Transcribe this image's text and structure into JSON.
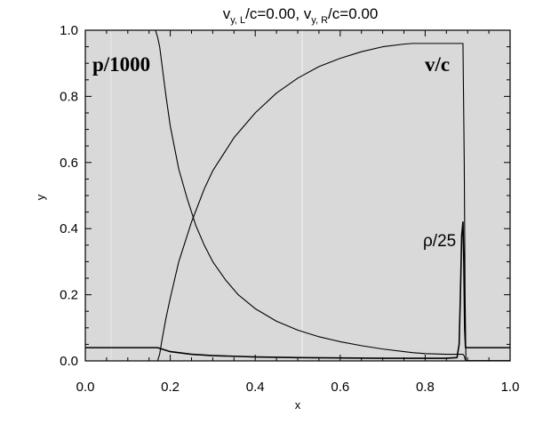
{
  "chart_data": {
    "type": "line",
    "title": "v_{y, L}/c=0.00,  v_{y, R}/c=0.00",
    "title_parts": {
      "v1": "v",
      "sub1": "y, L",
      "mid": "/c=0.00,  ",
      "v2": "v",
      "sub2": "y, R",
      "end": "/c=0.00"
    },
    "xlabel": "x",
    "ylabel": "y",
    "xlim": [
      0.0,
      1.0
    ],
    "ylim": [
      0.0,
      1.0
    ],
    "xticks": [
      "0.0",
      "0.2",
      "0.4",
      "0.6",
      "0.8",
      "1.0"
    ],
    "yticks": [
      "0.0",
      "0.2",
      "0.4",
      "0.6",
      "0.8",
      "1.0"
    ],
    "grid": false,
    "background_color": "#d9d9d9",
    "line_color": "#000000",
    "annotations": [
      "p/1000",
      "v/c",
      "ρ/25"
    ],
    "series": [
      {
        "name": "p/1000",
        "x": [
          0.0,
          0.165,
          0.17,
          0.175,
          0.18,
          0.19,
          0.2,
          0.22,
          0.24,
          0.26,
          0.28,
          0.3,
          0.33,
          0.36,
          0.4,
          0.45,
          0.5,
          0.55,
          0.6,
          0.65,
          0.7,
          0.75,
          0.77,
          0.8,
          0.85,
          0.88,
          0.886,
          0.889,
          0.892,
          0.894,
          0.896,
          1.0
        ],
        "y": [
          1.0,
          1.0,
          0.98,
          0.95,
          0.9,
          0.8,
          0.71,
          0.58,
          0.49,
          0.41,
          0.35,
          0.3,
          0.245,
          0.2,
          0.158,
          0.12,
          0.093,
          0.073,
          0.058,
          0.046,
          0.036,
          0.028,
          0.025,
          0.022,
          0.02,
          0.02,
          0.02,
          0.02,
          0.015,
          0.005,
          0.001,
          0.001
        ]
      },
      {
        "name": "v/c",
        "x": [
          0.0,
          0.17,
          0.175,
          0.18,
          0.19,
          0.2,
          0.22,
          0.25,
          0.28,
          0.3,
          0.35,
          0.4,
          0.45,
          0.5,
          0.55,
          0.6,
          0.65,
          0.7,
          0.75,
          0.77,
          0.8,
          0.85,
          0.885,
          0.889,
          0.892,
          0.894,
          0.896,
          1.0
        ],
        "y": [
          0.0,
          0.0,
          0.02,
          0.06,
          0.13,
          0.19,
          0.3,
          0.42,
          0.52,
          0.575,
          0.675,
          0.75,
          0.81,
          0.855,
          0.89,
          0.915,
          0.935,
          0.95,
          0.958,
          0.96,
          0.96,
          0.96,
          0.96,
          0.96,
          0.6,
          0.2,
          0.0,
          0.0
        ]
      },
      {
        "name": "ρ/25",
        "x": [
          0.0,
          0.17,
          0.18,
          0.2,
          0.25,
          0.3,
          0.4,
          0.5,
          0.6,
          0.7,
          0.8,
          0.85,
          0.875,
          0.88,
          0.883,
          0.886,
          0.889,
          0.891,
          0.893,
          0.895,
          0.898,
          1.0
        ],
        "y": [
          0.04,
          0.04,
          0.036,
          0.028,
          0.02,
          0.016,
          0.012,
          0.01,
          0.009,
          0.008,
          0.008,
          0.008,
          0.01,
          0.05,
          0.2,
          0.38,
          0.42,
          0.3,
          0.1,
          0.04,
          0.04,
          0.04
        ]
      }
    ]
  }
}
